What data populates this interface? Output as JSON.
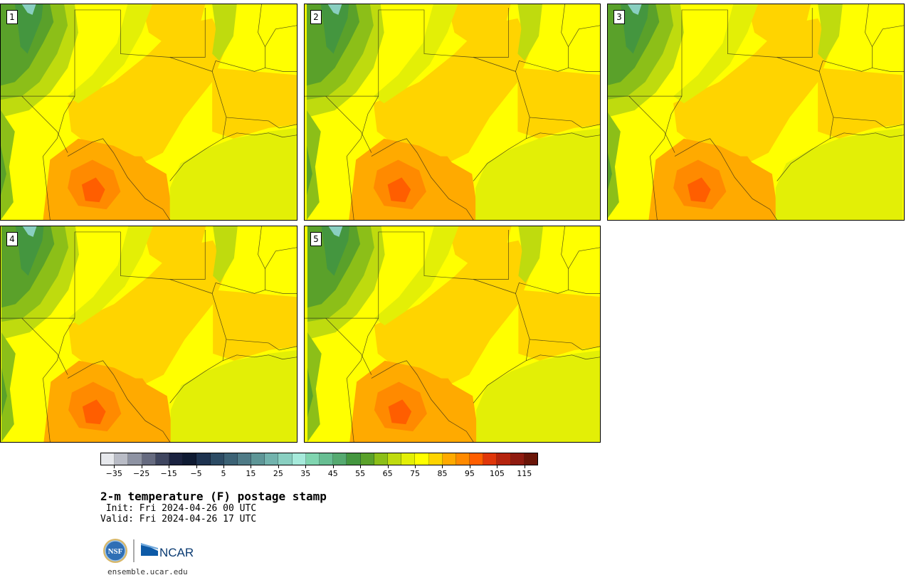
{
  "panels": [
    {
      "label": "1"
    },
    {
      "label": "2"
    },
    {
      "label": "3"
    },
    {
      "label": "4"
    },
    {
      "label": "5"
    }
  ],
  "colorbar": {
    "colors": [
      "#e6e8ec",
      "#b9bcc6",
      "#8e93a3",
      "#666b80",
      "#3f4660",
      "#1b2340",
      "#0f1b33",
      "#1e3350",
      "#2c4b64",
      "#3c6275",
      "#4f7b87",
      "#5e9697",
      "#72b3ad",
      "#89cfc1",
      "#a6eadb",
      "#80d5b0",
      "#67be92",
      "#55aa70",
      "#44963f",
      "#5aa12a",
      "#8cbf18",
      "#bfdb0e",
      "#e3ef06",
      "#ffff00",
      "#ffd400",
      "#ffaa00",
      "#ff8a00",
      "#ff5e00",
      "#e0360a",
      "#b5240e",
      "#8f1b10",
      "#6a1508"
    ],
    "tick_labels": [
      "−35",
      "−25",
      "−15",
      "−5",
      "5",
      "15",
      "25",
      "35",
      "45",
      "55",
      "65",
      "75",
      "85",
      "95",
      "105",
      "115"
    ],
    "min": -40,
    "max": 120,
    "step": 5
  },
  "header": {
    "title": "2-m temperature (F) postage stamp",
    "init": " Init: Fri 2024-04-26 00 UTC",
    "valid": "Valid: Fri 2024-04-26 17 UTC"
  },
  "logos": {
    "nsf_text": "NSF",
    "ncar_text": "NCAR"
  },
  "footer": {
    "site": "ensemble.ucar.edu"
  }
}
